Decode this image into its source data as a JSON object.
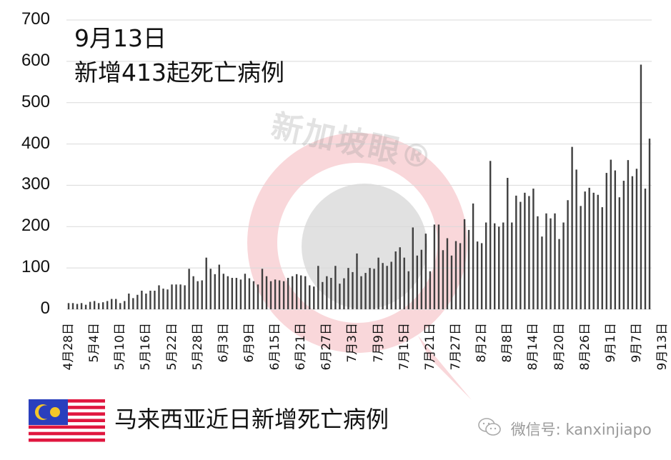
{
  "title": {
    "line1": "9月13日",
    "line2": "新增413起死亡病例"
  },
  "watermark": {
    "text": "新加坡眼®",
    "ring_color": "#f4b6bb",
    "eye_color": "#bdbdbd"
  },
  "legend": {
    "label": "马来西亚近日新增死亡病例",
    "flag": "malaysia-flag"
  },
  "footer": {
    "icon": "wechat-icon",
    "text": "微信号: kanxinjiapo"
  },
  "colors": {
    "bar": "#404040",
    "grid": "#d9d9d9",
    "text": "#111111"
  },
  "chart_data": {
    "type": "bar",
    "title": "9月13日 新增413起死亡病例",
    "subtitle": "马来西亚近日新增死亡病例",
    "xlabel": "",
    "ylabel": "",
    "ylim": [
      0,
      700
    ],
    "yticks": [
      0,
      100,
      200,
      300,
      400,
      500,
      600,
      700
    ],
    "grid": true,
    "legend_position": "bottom-left",
    "x_tick_labels": [
      "4月28日",
      "5月4日",
      "5月10日",
      "5月16日",
      "5月22日",
      "5月28日",
      "6月3日",
      "6月9日",
      "6月15日",
      "6月21日",
      "6月27日",
      "7月3日",
      "7月9日",
      "7月15日",
      "7月21日",
      "7月27日",
      "8月2日",
      "8月8日",
      "8月14日",
      "8月20日",
      "8月26日",
      "9月1日",
      "9月7日",
      "9月13日"
    ],
    "start_date": "4月28日",
    "end_date": "9月13日",
    "series": [
      {
        "name": "马来西亚新增死亡病例",
        "values": [
          15,
          15,
          13,
          15,
          11,
          18,
          20,
          15,
          17,
          20,
          25,
          25,
          15,
          20,
          38,
          27,
          35,
          45,
          38,
          45,
          45,
          58,
          50,
          48,
          60,
          60,
          60,
          58,
          98,
          80,
          68,
          70,
          125,
          98,
          85,
          108,
          86,
          80,
          76,
          76,
          72,
          86,
          75,
          68,
          60,
          98,
          80,
          68,
          72,
          70,
          68,
          76,
          80,
          85,
          82,
          80,
          58,
          55,
          105,
          66,
          80,
          76,
          105,
          62,
          75,
          100,
          90,
          135,
          80,
          88,
          100,
          98,
          125,
          112,
          105,
          115,
          140,
          150,
          125,
          92,
          198,
          130,
          144,
          183,
          92,
          205,
          205,
          143,
          172,
          130,
          165,
          160,
          218,
          192,
          256,
          164,
          160,
          210,
          359,
          208,
          200,
          210,
          318,
          210,
          275,
          260,
          282,
          274,
          292,
          225,
          176,
          232,
          220,
          232,
          170,
          210,
          264,
          393,
          338,
          250,
          285,
          294,
          282,
          277,
          247,
          330,
          362,
          336,
          271,
          311,
          361,
          322,
          340,
          592,
          292,
          413
        ]
      }
    ]
  }
}
